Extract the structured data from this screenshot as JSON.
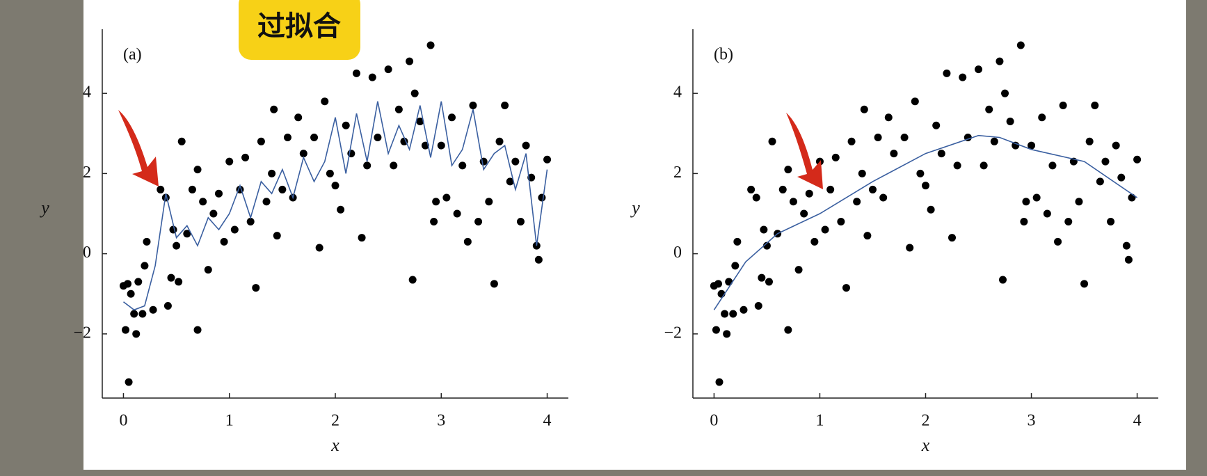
{
  "annotation": "过拟合",
  "chart_data": [
    {
      "type": "scatter",
      "label": "(a)",
      "xlabel": "x",
      "ylabel": "y",
      "xlim": [
        -0.2,
        4.2
      ],
      "ylim": [
        -3.6,
        5.6
      ],
      "xticks": [
        0,
        1,
        2,
        3,
        4
      ],
      "yticks": [
        {
          "value": -2,
          "label": "−2"
        },
        0,
        2,
        4
      ],
      "series": [
        {
          "type": "scatter",
          "color": "#000000",
          "x": [
            0,
            0.02,
            0.04,
            0.05,
            0.07,
            0.1,
            0.12,
            0.14,
            0.18,
            0.2,
            0.22,
            0.28,
            0.35,
            0.4,
            0.42,
            0.45,
            0.47,
            0.5,
            0.52,
            0.55,
            0.6,
            0.65,
            0.7,
            0.7,
            0.75,
            0.8,
            0.85,
            0.9,
            0.95,
            1.0,
            1.05,
            1.1,
            1.15,
            1.2,
            1.25,
            1.3,
            1.35,
            1.4,
            1.42,
            1.45,
            1.5,
            1.55,
            1.6,
            1.65,
            1.7,
            1.8,
            1.85,
            1.9,
            1.95,
            2.0,
            2.05,
            2.1,
            2.15,
            2.2,
            2.25,
            2.3,
            2.35,
            2.4,
            2.5,
            2.55,
            2.6,
            2.65,
            2.7,
            2.73,
            2.75,
            2.8,
            2.85,
            2.9,
            2.93,
            2.95,
            3.0,
            3.05,
            3.1,
            3.15,
            3.2,
            3.25,
            3.3,
            3.35,
            3.4,
            3.45,
            3.5,
            3.55,
            3.6,
            3.65,
            3.7,
            3.75,
            3.8,
            3.85,
            3.9,
            3.92,
            3.95,
            4.0
          ],
          "y": [
            -0.8,
            -1.9,
            -0.75,
            -3.2,
            -1.0,
            -1.5,
            -2.0,
            -0.7,
            -1.5,
            -0.3,
            0.3,
            -1.4,
            1.6,
            1.4,
            -1.3,
            -0.6,
            0.6,
            0.2,
            -0.7,
            2.8,
            0.5,
            1.6,
            2.1,
            -1.9,
            1.3,
            -0.4,
            1.0,
            1.5,
            0.3,
            2.3,
            0.6,
            1.6,
            2.4,
            0.8,
            -0.85,
            2.8,
            1.3,
            2.0,
            3.6,
            0.45,
            1.6,
            2.9,
            1.4,
            3.4,
            2.5,
            2.9,
            0.15,
            3.8,
            2.0,
            1.7,
            1.1,
            3.2,
            2.5,
            4.5,
            0.4,
            2.2,
            4.4,
            2.9,
            4.6,
            2.2,
            3.6,
            2.8,
            4.8,
            -0.65,
            4.0,
            3.3,
            2.7,
            5.2,
            0.8,
            1.3,
            2.7,
            1.4,
            3.4,
            1.0,
            2.2,
            0.3,
            3.7,
            0.8,
            2.3,
            1.3,
            -0.75,
            2.8,
            3.7,
            1.8,
            2.3,
            0.8,
            2.7,
            1.9,
            0.2,
            -0.15,
            1.4,
            2.35
          ]
        },
        {
          "type": "line",
          "color": "#3a5fa0",
          "x": [
            0,
            0.1,
            0.2,
            0.3,
            0.4,
            0.5,
            0.6,
            0.7,
            0.8,
            0.9,
            1.0,
            1.1,
            1.2,
            1.3,
            1.4,
            1.5,
            1.6,
            1.7,
            1.8,
            1.9,
            2.0,
            2.1,
            2.2,
            2.3,
            2.4,
            2.5,
            2.6,
            2.7,
            2.8,
            2.9,
            3.0,
            3.1,
            3.2,
            3.3,
            3.4,
            3.5,
            3.6,
            3.7,
            3.8,
            3.9,
            4.0
          ],
          "y": [
            -1.2,
            -1.4,
            -1.3,
            -0.3,
            1.5,
            0.4,
            0.7,
            0.2,
            0.9,
            0.6,
            1.0,
            1.7,
            0.9,
            1.8,
            1.5,
            2.1,
            1.4,
            2.4,
            1.8,
            2.3,
            3.4,
            2.0,
            3.5,
            2.3,
            3.8,
            2.5,
            3.2,
            2.6,
            3.7,
            2.4,
            3.8,
            2.2,
            2.6,
            3.6,
            2.1,
            2.5,
            2.7,
            1.6,
            2.5,
            0.2,
            2.1
          ]
        }
      ]
    },
    {
      "type": "scatter",
      "label": "(b)",
      "xlabel": "x",
      "ylabel": "y",
      "xlim": [
        -0.2,
        4.2
      ],
      "ylim": [
        -3.6,
        5.6
      ],
      "xticks": [
        0,
        1,
        2,
        3,
        4
      ],
      "yticks": [
        {
          "value": -2,
          "label": "−2"
        },
        0,
        2,
        4
      ],
      "series": [
        {
          "type": "scatter",
          "color": "#000000",
          "x": [
            0,
            0.02,
            0.04,
            0.05,
            0.07,
            0.1,
            0.12,
            0.14,
            0.18,
            0.2,
            0.22,
            0.28,
            0.35,
            0.4,
            0.42,
            0.45,
            0.47,
            0.5,
            0.52,
            0.55,
            0.6,
            0.65,
            0.7,
            0.7,
            0.75,
            0.8,
            0.85,
            0.9,
            0.95,
            1.0,
            1.05,
            1.1,
            1.15,
            1.2,
            1.25,
            1.3,
            1.35,
            1.4,
            1.42,
            1.45,
            1.5,
            1.55,
            1.6,
            1.65,
            1.7,
            1.8,
            1.85,
            1.9,
            1.95,
            2.0,
            2.05,
            2.1,
            2.15,
            2.2,
            2.25,
            2.3,
            2.35,
            2.4,
            2.5,
            2.55,
            2.6,
            2.65,
            2.7,
            2.73,
            2.75,
            2.8,
            2.85,
            2.9,
            2.93,
            2.95,
            3.0,
            3.05,
            3.1,
            3.15,
            3.2,
            3.25,
            3.3,
            3.35,
            3.4,
            3.45,
            3.5,
            3.55,
            3.6,
            3.65,
            3.7,
            3.75,
            3.8,
            3.85,
            3.9,
            3.92,
            3.95,
            4.0
          ],
          "y": [
            -0.8,
            -1.9,
            -0.75,
            -3.2,
            -1.0,
            -1.5,
            -2.0,
            -0.7,
            -1.5,
            -0.3,
            0.3,
            -1.4,
            1.6,
            1.4,
            -1.3,
            -0.6,
            0.6,
            0.2,
            -0.7,
            2.8,
            0.5,
            1.6,
            2.1,
            -1.9,
            1.3,
            -0.4,
            1.0,
            1.5,
            0.3,
            2.3,
            0.6,
            1.6,
            2.4,
            0.8,
            -0.85,
            2.8,
            1.3,
            2.0,
            3.6,
            0.45,
            1.6,
            2.9,
            1.4,
            3.4,
            2.5,
            2.9,
            0.15,
            3.8,
            2.0,
            1.7,
            1.1,
            3.2,
            2.5,
            4.5,
            0.4,
            2.2,
            4.4,
            2.9,
            4.6,
            2.2,
            3.6,
            2.8,
            4.8,
            -0.65,
            4.0,
            3.3,
            2.7,
            5.2,
            0.8,
            1.3,
            2.7,
            1.4,
            3.4,
            1.0,
            2.2,
            0.3,
            3.7,
            0.8,
            2.3,
            1.3,
            -0.75,
            2.8,
            3.7,
            1.8,
            2.3,
            0.8,
            2.7,
            1.9,
            0.2,
            -0.15,
            1.4,
            2.35
          ]
        },
        {
          "type": "line",
          "color": "#3a5fa0",
          "x": [
            0,
            0.3,
            0.6,
            1.0,
            1.5,
            2.0,
            2.5,
            2.7,
            3.0,
            3.5,
            4.0
          ],
          "y": [
            -1.4,
            -0.2,
            0.5,
            1.0,
            1.8,
            2.5,
            2.95,
            2.9,
            2.6,
            2.3,
            1.4
          ]
        }
      ]
    }
  ]
}
